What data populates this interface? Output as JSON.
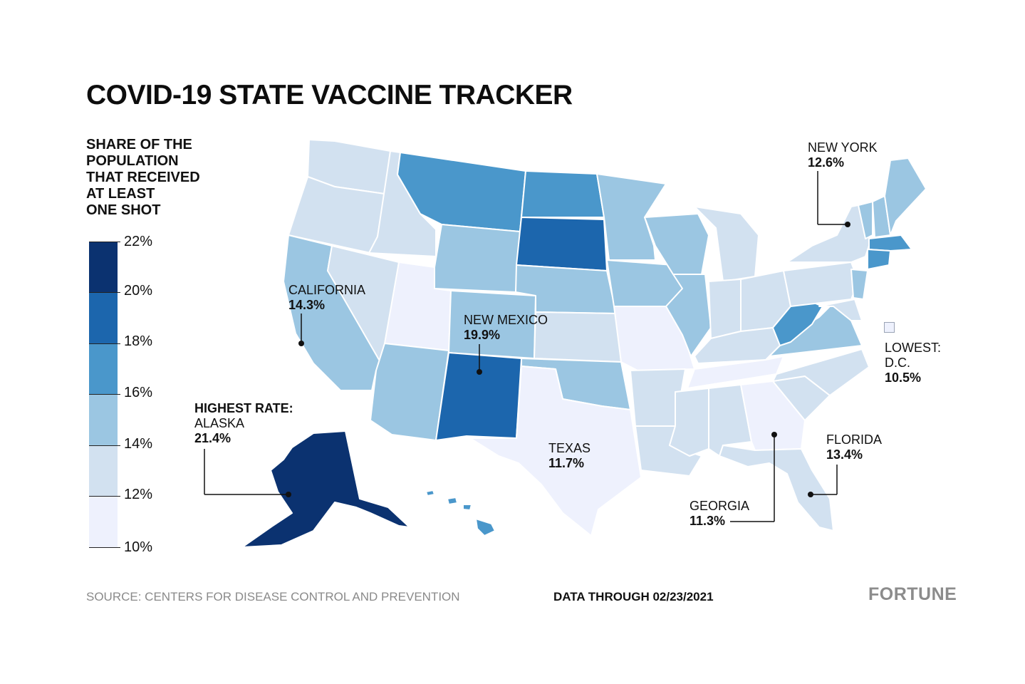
{
  "title": "COVID-19 STATE VACCINE TRACKER",
  "legend": {
    "title_lines": [
      "SHARE OF THE",
      "POPULATION",
      "THAT RECEIVED",
      "AT LEAST",
      "ONE SHOT"
    ],
    "ticks": [
      "22%",
      "20%",
      "18%",
      "16%",
      "14%",
      "12%",
      "10%"
    ],
    "bins": [
      {
        "range": "20–22%",
        "color": "#0b3270"
      },
      {
        "range": "18–20%",
        "color": "#1c66ad"
      },
      {
        "range": "16–18%",
        "color": "#4a97cb"
      },
      {
        "range": "14–16%",
        "color": "#9bc6e2"
      },
      {
        "range": "12–14%",
        "color": "#d2e1f0"
      },
      {
        "range": "10–12%",
        "color": "#eef1fd"
      }
    ]
  },
  "callouts": {
    "california": {
      "name": "CALIFORNIA",
      "value": "14.3%"
    },
    "new_mexico": {
      "name": "NEW MEXICO",
      "value": "19.9%"
    },
    "texas": {
      "name": "TEXAS",
      "value": "11.7%"
    },
    "new_york": {
      "name": "NEW YORK",
      "value": "12.6%"
    },
    "florida": {
      "name": "FLORIDA",
      "value": "13.4%"
    },
    "georgia": {
      "name": "GEORGIA",
      "value": "11.3%"
    },
    "alaska": {
      "label": "HIGHEST RATE:",
      "name": "ALASKA",
      "value": "21.4%"
    },
    "dc": {
      "label": "LOWEST:",
      "name": "D.C.",
      "value": "10.5%"
    }
  },
  "source": "SOURCE: CENTERS FOR DISEASE CONTROL AND PREVENTION",
  "data_through": "DATA THROUGH 02/23/2021",
  "brand": "FORTUNE",
  "colors": {
    "dark": "#0b3270",
    "blue": "#1c66ad",
    "mid": "#4a97cb",
    "light": "#9bc6e2",
    "pale": "#d2e1f0",
    "lowest": "#eef1fd"
  }
}
